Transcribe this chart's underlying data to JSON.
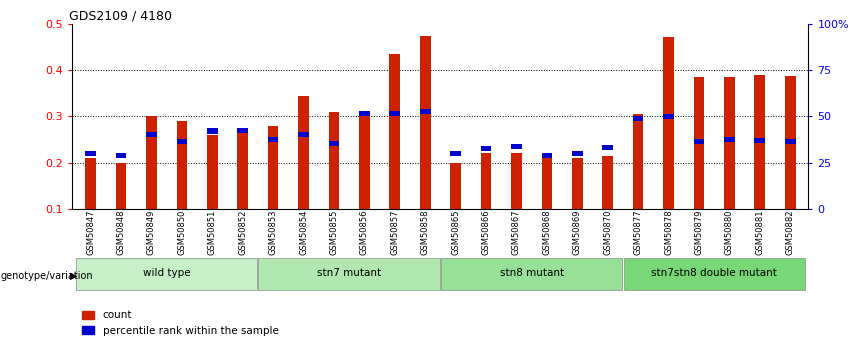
{
  "title": "GDS2109 / 4180",
  "samples": [
    "GSM50847",
    "GSM50848",
    "GSM50849",
    "GSM50850",
    "GSM50851",
    "GSM50852",
    "GSM50853",
    "GSM50854",
    "GSM50855",
    "GSM50856",
    "GSM50857",
    "GSM50858",
    "GSM50865",
    "GSM50866",
    "GSM50867",
    "GSM50868",
    "GSM50869",
    "GSM50870",
    "GSM50877",
    "GSM50878",
    "GSM50879",
    "GSM50880",
    "GSM50881",
    "GSM50882"
  ],
  "count_values": [
    0.21,
    0.2,
    0.3,
    0.29,
    0.26,
    0.27,
    0.28,
    0.345,
    0.31,
    0.305,
    0.435,
    0.475,
    0.2,
    0.22,
    0.22,
    0.21,
    0.21,
    0.215,
    0.305,
    0.472,
    0.385,
    0.385,
    0.39,
    0.388
  ],
  "percentile_values": [
    0.215,
    0.21,
    0.255,
    0.24,
    0.263,
    0.265,
    0.245,
    0.255,
    0.235,
    0.3,
    0.3,
    0.305,
    0.215,
    0.225,
    0.23,
    0.21,
    0.215,
    0.228,
    0.29,
    0.295,
    0.24,
    0.245,
    0.243,
    0.24
  ],
  "groups": [
    {
      "label": "wild type",
      "start": 0,
      "end": 5,
      "color": "#c8f0c8"
    },
    {
      "label": "stn7 mutant",
      "start": 6,
      "end": 11,
      "color": "#b0e8b0"
    },
    {
      "label": "stn8 mutant",
      "start": 12,
      "end": 17,
      "color": "#98e098"
    },
    {
      "label": "stn7stn8 double mutant",
      "start": 18,
      "end": 23,
      "color": "#78d878"
    }
  ],
  "bar_color_red": "#cc2200",
  "bar_color_blue": "#0000cc",
  "ylim_left": [
    0.1,
    0.5
  ],
  "yticks_left": [
    0.1,
    0.2,
    0.3,
    0.4,
    0.5
  ],
  "yticks_right": [
    0,
    25,
    50,
    75,
    100
  ],
  "ytick_labels_right": [
    "0",
    "25",
    "50",
    "75",
    "100%"
  ],
  "bar_width": 0.35,
  "legend_count": "count",
  "legend_pct": "percentile rank within the sample",
  "genotype_label": "genotype/variation"
}
